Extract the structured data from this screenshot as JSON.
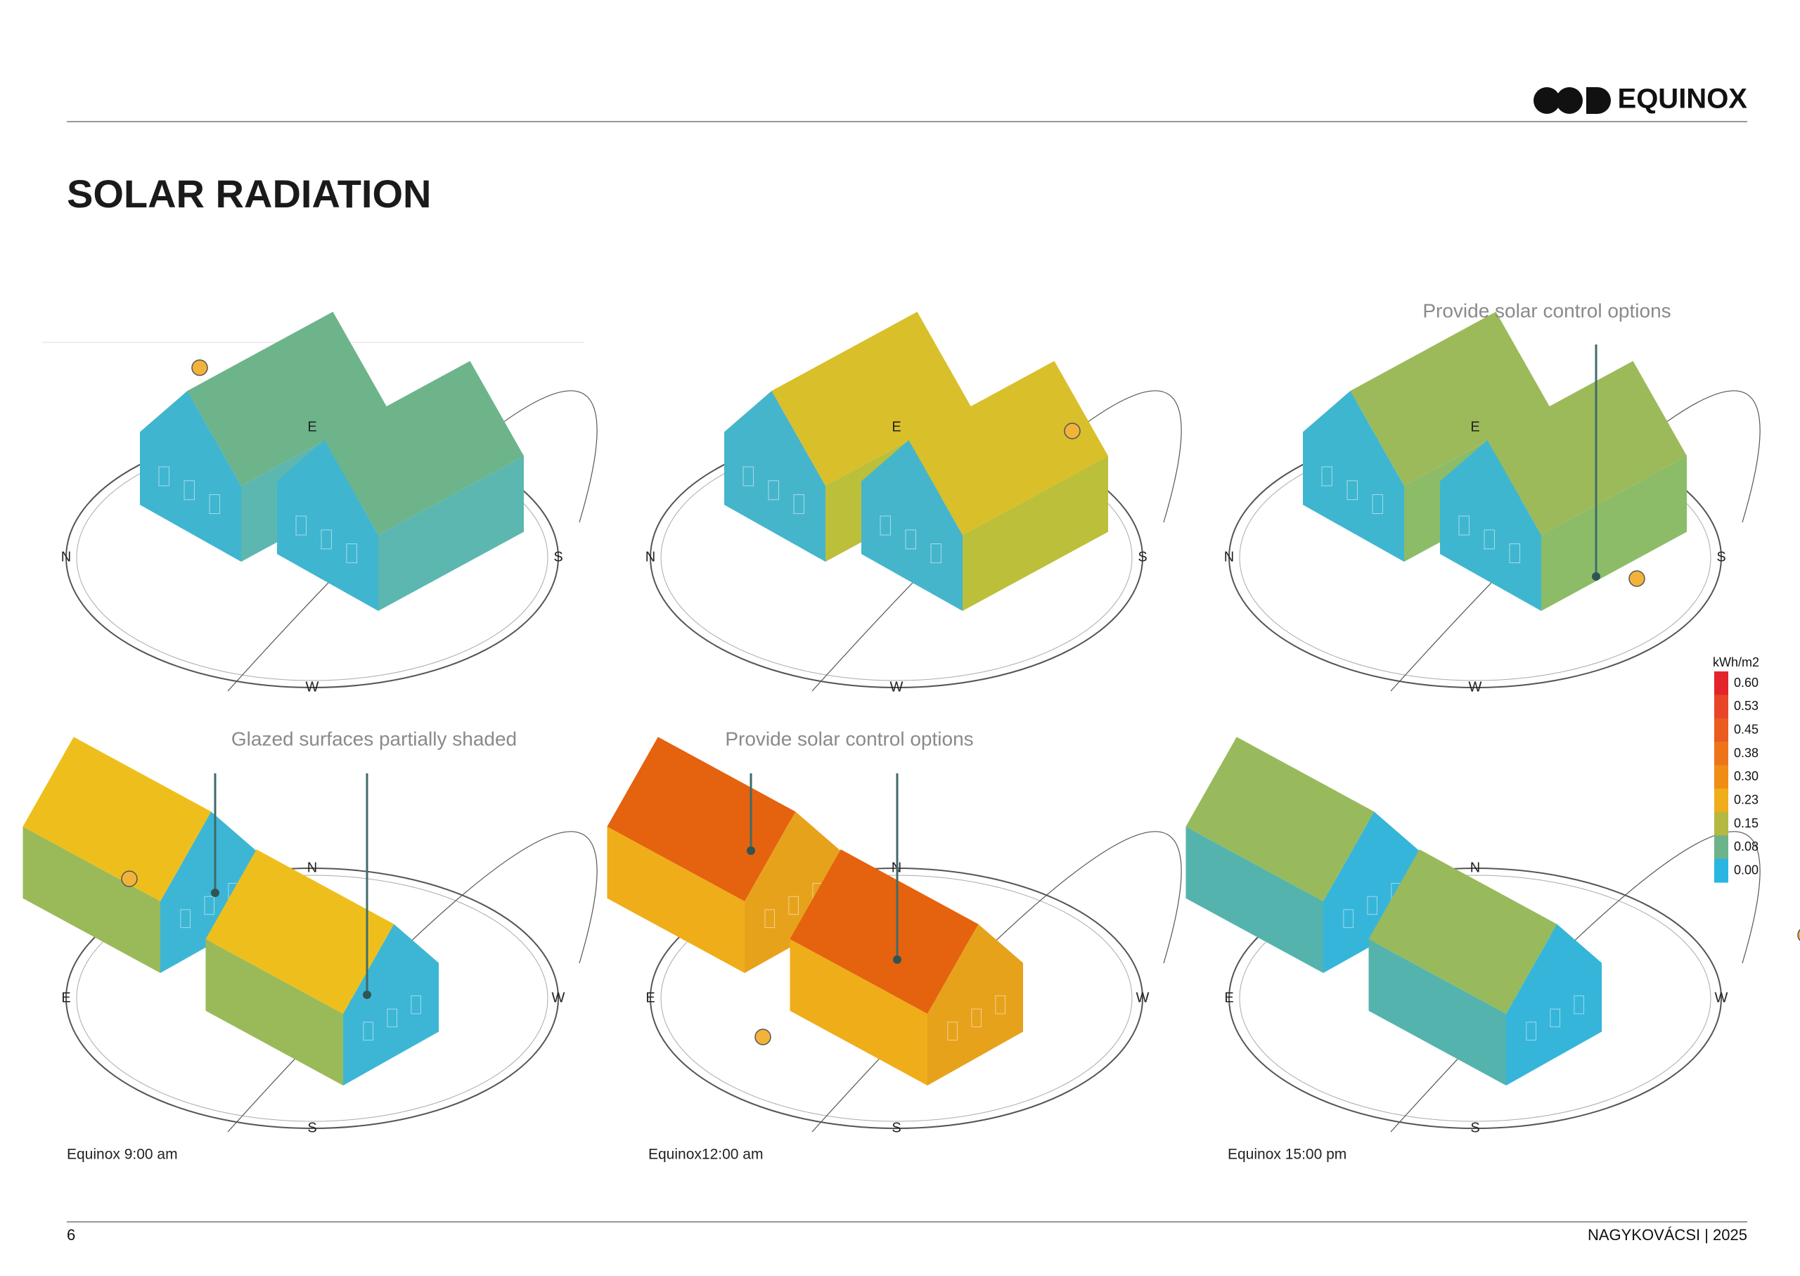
{
  "header": {
    "logo": "EQUINOX"
  },
  "title": "SOLAR RADIATION",
  "compass_labels": [
    "N",
    "E",
    "S",
    "W"
  ],
  "annotations": [
    "Provide solar control options",
    "Glazed surfaces partially shaded",
    "Provide solar control options"
  ],
  "captions": [
    "Equinox 9:00 am",
    "Equinox12:00 am",
    "Equinox 15:00 pm"
  ],
  "legend": {
    "title": "kWh/m2",
    "labels": [
      "0.60",
      "0.53",
      "0.45",
      "0.38",
      "0.30",
      "0.23",
      "0.15",
      "0.08",
      "0.00"
    ],
    "colors": [
      "#e3242b",
      "#e8452a",
      "#ea5c20",
      "#ed7419",
      "#f08d14",
      "#efad1a",
      "#b5b840",
      "#6cb38c",
      "#29b6e2"
    ]
  },
  "footer": {
    "page": "6",
    "project": "NAGYKOVÁCSI | 2025"
  }
}
